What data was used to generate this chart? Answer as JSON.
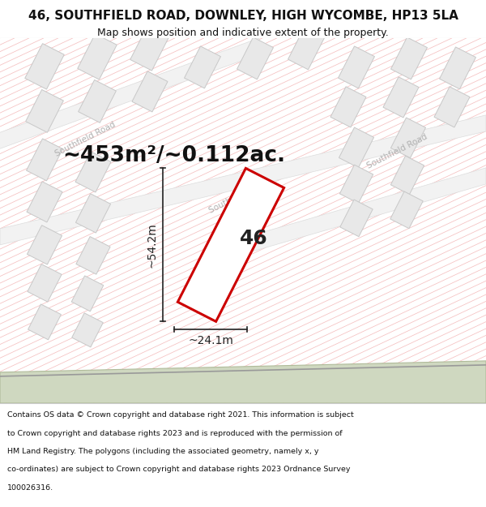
{
  "title": "46, SOUTHFIELD ROAD, DOWNLEY, HIGH WYCOMBE, HP13 5LA",
  "subtitle": "Map shows position and indicative extent of the property.",
  "footer_lines": [
    "Contains OS data © Crown copyright and database right 2021. This information is subject",
    "to Crown copyright and database rights 2023 and is reproduced with the permission of",
    "HM Land Registry. The polygons (including the associated geometry, namely x, y",
    "co-ordinates) are subject to Crown copyright and database rights 2023 Ordnance Survey",
    "100026316."
  ],
  "area_text": "~453m²/~0.112ac.",
  "dim_width": "~24.1m",
  "dim_height": "~54.2m",
  "house_number": "46",
  "bg_color": "#ffffff",
  "stripe_color": "#f5c0c0",
  "building_fill": "#e8e8e8",
  "building_stroke": "#c8c8c8",
  "road_fill": "#f2f2f2",
  "road_stroke": "#dddddd",
  "road_label_color": "#b0b0b0",
  "green_fill": "#cfd8c0",
  "green_stroke": "#b0bb9a",
  "prop_fill": "#ffffff",
  "prop_stroke": "#cc0000",
  "dim_color": "#222222",
  "area_color": "#111111",
  "title_color": "#111111",
  "title_fontsize": 11,
  "subtitle_fontsize": 9,
  "footer_fontsize": 6.8,
  "area_fontsize": 19,
  "dim_fontsize": 10,
  "house_fontsize": 18,
  "road_label_fontsize": 7.5
}
